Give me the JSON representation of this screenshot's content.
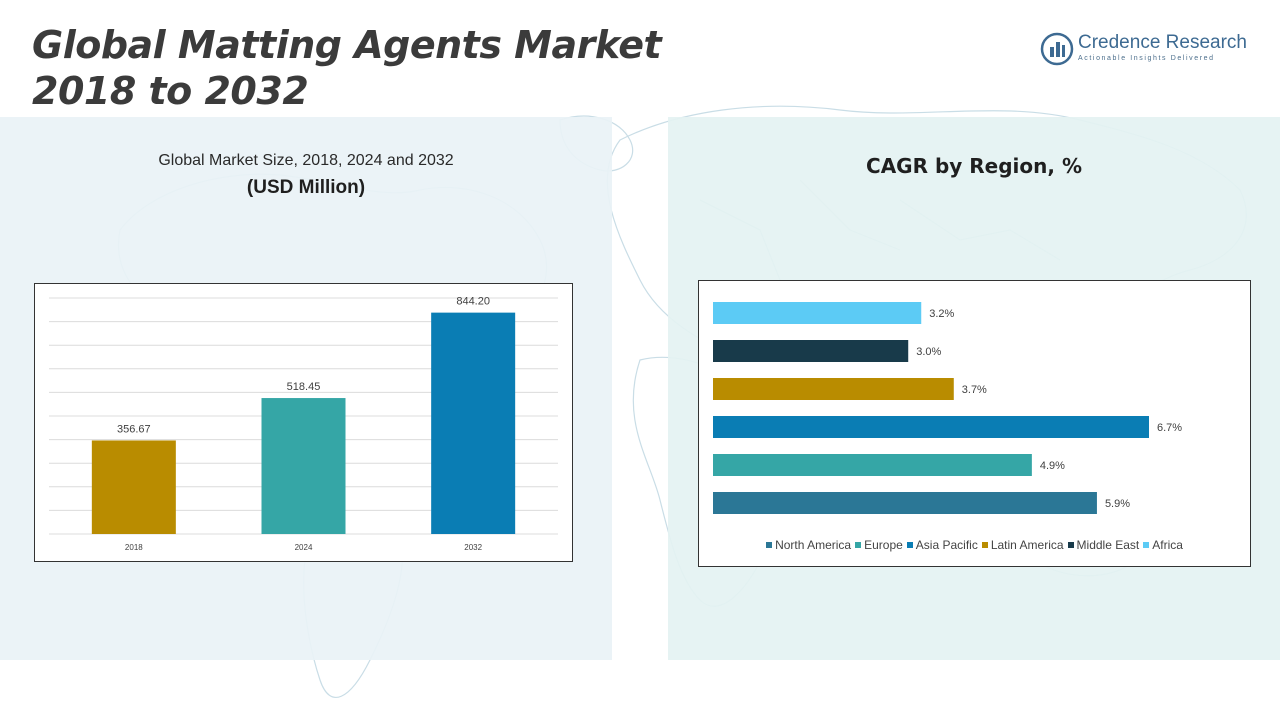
{
  "header": {
    "title_line1": "Global Matting Agents Market",
    "title_line2": "2018 to 2032"
  },
  "logo": {
    "name": "Credence Research",
    "tagline": "Actionable Insights Delivered",
    "icon": "bar-logo-icon"
  },
  "left_panel": {
    "subtitle": "Global Market Size, 2018, 2024 and 2032",
    "unit": "(USD Million)"
  },
  "right_panel": {
    "title": "CAGR by Region, %"
  },
  "colors": {
    "bar_2018": "#b98c00",
    "bar_2024": "#35a6a6",
    "bar_2032": "#0a7db4",
    "north_america": "#2b7796",
    "europe": "#35a6a6",
    "asia_pacific": "#0a7db4",
    "latin_america": "#b98c00",
    "middle_east": "#183a4a",
    "africa": "#5ccbf5"
  },
  "chart_data": [
    {
      "type": "bar",
      "categories": [
        "2018",
        "2024",
        "2032"
      ],
      "values": [
        356.67,
        518.45,
        844.2
      ],
      "value_labels": [
        "356.67",
        "518.45",
        "844.20"
      ],
      "ylim": [
        0,
        900
      ],
      "grid": true
    },
    {
      "type": "bar",
      "orientation": "horizontal",
      "categories": [
        "North America",
        "Europe",
        "Asia Pacific",
        "Latin America",
        "Middle East",
        "Africa"
      ],
      "values": [
        5.9,
        4.9,
        6.7,
        3.7,
        3.0,
        3.2
      ],
      "value_labels": [
        "5.9%",
        "4.9%",
        "6.7%",
        "3.7%",
        "3.0%",
        "3.2%"
      ],
      "legend_placement": "bottom",
      "grid": false
    }
  ]
}
